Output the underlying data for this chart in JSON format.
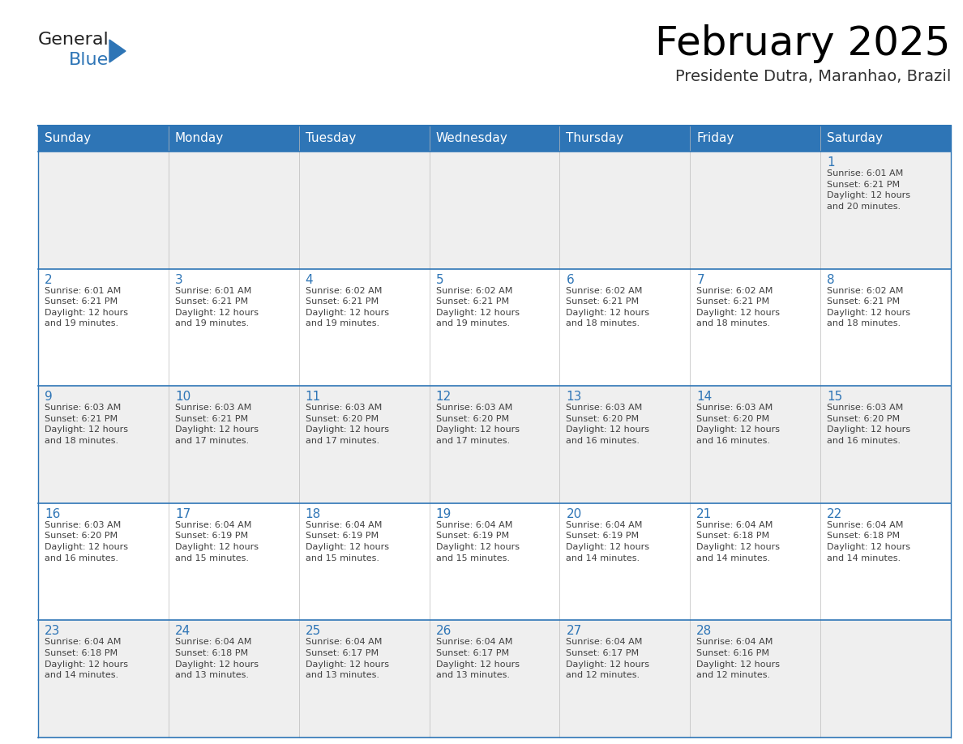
{
  "title": "February 2025",
  "subtitle": "Presidente Dutra, Maranhao, Brazil",
  "header_bg": "#2E75B6",
  "header_text_color": "#FFFFFF",
  "cell_bg_odd": "#EFEFEF",
  "cell_bg_even": "#FFFFFF",
  "day_number_color": "#2E75B6",
  "info_text_color": "#404040",
  "border_color": "#2E75B6",
  "days_of_week": [
    "Sunday",
    "Monday",
    "Tuesday",
    "Wednesday",
    "Thursday",
    "Friday",
    "Saturday"
  ],
  "calendar_data": [
    [
      {
        "day": null,
        "info": ""
      },
      {
        "day": null,
        "info": ""
      },
      {
        "day": null,
        "info": ""
      },
      {
        "day": null,
        "info": ""
      },
      {
        "day": null,
        "info": ""
      },
      {
        "day": null,
        "info": ""
      },
      {
        "day": 1,
        "info": "Sunrise: 6:01 AM\nSunset: 6:21 PM\nDaylight: 12 hours\nand 20 minutes."
      }
    ],
    [
      {
        "day": 2,
        "info": "Sunrise: 6:01 AM\nSunset: 6:21 PM\nDaylight: 12 hours\nand 19 minutes."
      },
      {
        "day": 3,
        "info": "Sunrise: 6:01 AM\nSunset: 6:21 PM\nDaylight: 12 hours\nand 19 minutes."
      },
      {
        "day": 4,
        "info": "Sunrise: 6:02 AM\nSunset: 6:21 PM\nDaylight: 12 hours\nand 19 minutes."
      },
      {
        "day": 5,
        "info": "Sunrise: 6:02 AM\nSunset: 6:21 PM\nDaylight: 12 hours\nand 19 minutes."
      },
      {
        "day": 6,
        "info": "Sunrise: 6:02 AM\nSunset: 6:21 PM\nDaylight: 12 hours\nand 18 minutes."
      },
      {
        "day": 7,
        "info": "Sunrise: 6:02 AM\nSunset: 6:21 PM\nDaylight: 12 hours\nand 18 minutes."
      },
      {
        "day": 8,
        "info": "Sunrise: 6:02 AM\nSunset: 6:21 PM\nDaylight: 12 hours\nand 18 minutes."
      }
    ],
    [
      {
        "day": 9,
        "info": "Sunrise: 6:03 AM\nSunset: 6:21 PM\nDaylight: 12 hours\nand 18 minutes."
      },
      {
        "day": 10,
        "info": "Sunrise: 6:03 AM\nSunset: 6:21 PM\nDaylight: 12 hours\nand 17 minutes."
      },
      {
        "day": 11,
        "info": "Sunrise: 6:03 AM\nSunset: 6:20 PM\nDaylight: 12 hours\nand 17 minutes."
      },
      {
        "day": 12,
        "info": "Sunrise: 6:03 AM\nSunset: 6:20 PM\nDaylight: 12 hours\nand 17 minutes."
      },
      {
        "day": 13,
        "info": "Sunrise: 6:03 AM\nSunset: 6:20 PM\nDaylight: 12 hours\nand 16 minutes."
      },
      {
        "day": 14,
        "info": "Sunrise: 6:03 AM\nSunset: 6:20 PM\nDaylight: 12 hours\nand 16 minutes."
      },
      {
        "day": 15,
        "info": "Sunrise: 6:03 AM\nSunset: 6:20 PM\nDaylight: 12 hours\nand 16 minutes."
      }
    ],
    [
      {
        "day": 16,
        "info": "Sunrise: 6:03 AM\nSunset: 6:20 PM\nDaylight: 12 hours\nand 16 minutes."
      },
      {
        "day": 17,
        "info": "Sunrise: 6:04 AM\nSunset: 6:19 PM\nDaylight: 12 hours\nand 15 minutes."
      },
      {
        "day": 18,
        "info": "Sunrise: 6:04 AM\nSunset: 6:19 PM\nDaylight: 12 hours\nand 15 minutes."
      },
      {
        "day": 19,
        "info": "Sunrise: 6:04 AM\nSunset: 6:19 PM\nDaylight: 12 hours\nand 15 minutes."
      },
      {
        "day": 20,
        "info": "Sunrise: 6:04 AM\nSunset: 6:19 PM\nDaylight: 12 hours\nand 14 minutes."
      },
      {
        "day": 21,
        "info": "Sunrise: 6:04 AM\nSunset: 6:18 PM\nDaylight: 12 hours\nand 14 minutes."
      },
      {
        "day": 22,
        "info": "Sunrise: 6:04 AM\nSunset: 6:18 PM\nDaylight: 12 hours\nand 14 minutes."
      }
    ],
    [
      {
        "day": 23,
        "info": "Sunrise: 6:04 AM\nSunset: 6:18 PM\nDaylight: 12 hours\nand 14 minutes."
      },
      {
        "day": 24,
        "info": "Sunrise: 6:04 AM\nSunset: 6:18 PM\nDaylight: 12 hours\nand 13 minutes."
      },
      {
        "day": 25,
        "info": "Sunrise: 6:04 AM\nSunset: 6:17 PM\nDaylight: 12 hours\nand 13 minutes."
      },
      {
        "day": 26,
        "info": "Sunrise: 6:04 AM\nSunset: 6:17 PM\nDaylight: 12 hours\nand 13 minutes."
      },
      {
        "day": 27,
        "info": "Sunrise: 6:04 AM\nSunset: 6:17 PM\nDaylight: 12 hours\nand 12 minutes."
      },
      {
        "day": 28,
        "info": "Sunrise: 6:04 AM\nSunset: 6:16 PM\nDaylight: 12 hours\nand 12 minutes."
      },
      {
        "day": null,
        "info": ""
      }
    ]
  ],
  "logo_general_color": "#222222",
  "logo_blue_color": "#2E75B6",
  "title_fontsize": 36,
  "subtitle_fontsize": 14,
  "header_fontsize": 11,
  "day_num_fontsize": 11,
  "info_fontsize": 8,
  "figsize": [
    11.88,
    9.18
  ],
  "dpi": 100
}
